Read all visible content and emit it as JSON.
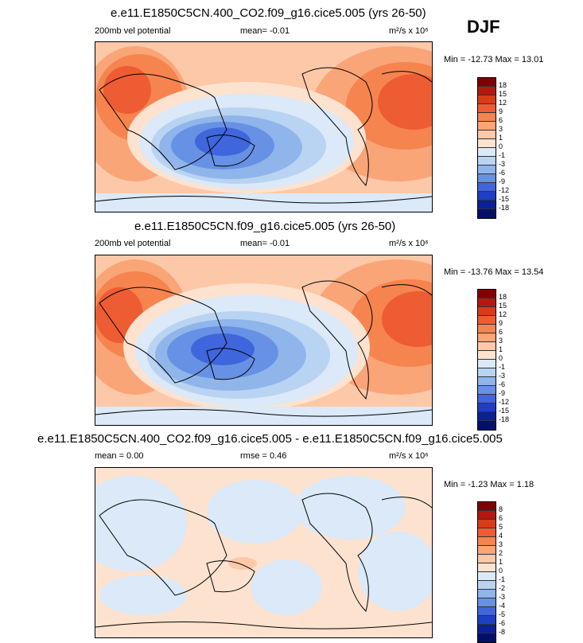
{
  "season": "DJF",
  "panels": [
    {
      "title": "e.e11.E1850C5CN.400_CO2.f09_g16.cice5.005 (yrs 26-50)",
      "left_label": "200mb vel potential",
      "center_label": "mean=  -0.01",
      "units": "m²/s x 10⁶",
      "minmax": "Min = -12.73 Max =  13.01",
      "colorbar_labels": [
        "18",
        "15",
        "12",
        "9",
        "6",
        "3",
        "1",
        "0",
        "-1",
        "-3",
        "-6",
        "-9",
        "-12",
        "-15",
        "-18"
      ]
    },
    {
      "title": "e.e11.E1850C5CN.f09_g16.cice5.005 (yrs 26-50)",
      "left_label": "200mb vel potential",
      "center_label": "mean=  -0.01",
      "units": "m²/s x 10⁶",
      "minmax": "Min = -13.76 Max =  13.54",
      "colorbar_labels": [
        "18",
        "15",
        "12",
        "9",
        "6",
        "3",
        "1",
        "0",
        "-1",
        "-3",
        "-6",
        "-9",
        "-12",
        "-15",
        "-18"
      ]
    },
    {
      "title": "e.e11.E1850C5CN.400_CO2.f09_g16.cice5.005 - e.e11.E1850C5CN.f09_g16.cice5.005",
      "left_label": "mean =   0.00",
      "center_label": "rmse =   0.46",
      "units": "m²/s x 10⁶",
      "minmax": "Min =  -1.23 Max =   1.18",
      "colorbar_labels": [
        "8",
        "6",
        "5",
        "4",
        "3",
        "2",
        "1",
        "0",
        "-1",
        "-2",
        "-3",
        "-4",
        "-5",
        "-6",
        "-8"
      ]
    }
  ],
  "colors": {
    "colorbar": [
      "#7f0000",
      "#b2180e",
      "#d93b17",
      "#ee5c33",
      "#f6844f",
      "#f9a578",
      "#fcc8a8",
      "#fde3cf",
      "#dbe9f8",
      "#b9d3f2",
      "#8fb5eb",
      "#6791e4",
      "#3f66dc",
      "#1d3fc4",
      "#0b2196",
      "#03106b"
    ],
    "land": "#000000"
  },
  "chart_data": [
    {
      "type": "heatmap",
      "title": "e.e11.E1850C5CN.400_CO2.f09_g16.cice5.005 (yrs 26-50)",
      "variable": "200mb vel potential",
      "units": "m²/s x 10⁶",
      "mean": -0.01,
      "min": -12.73,
      "max": 13.01,
      "contour_levels": [
        -18,
        -15,
        -12,
        -9,
        -6,
        -3,
        -1,
        0,
        1,
        3,
        6,
        9,
        12,
        15,
        18
      ],
      "pattern": {
        "negative_center": "western Pacific / Maritime Continent",
        "positive_centers": [
          "Africa / Atlantic",
          "Middle East / Indian Ocean"
        ]
      }
    },
    {
      "type": "heatmap",
      "title": "e.e11.E1850C5CN.f09_g16.cice5.005 (yrs 26-50)",
      "variable": "200mb vel potential",
      "units": "m²/s x 10⁶",
      "mean": -0.01,
      "min": -13.76,
      "max": 13.54,
      "contour_levels": [
        -18,
        -15,
        -12,
        -9,
        -6,
        -3,
        -1,
        0,
        1,
        3,
        6,
        9,
        12,
        15,
        18
      ],
      "pattern": {
        "negative_center": "western Pacific / Maritime Continent",
        "positive_centers": [
          "Africa / Atlantic",
          "Middle East / Indian Ocean"
        ]
      }
    },
    {
      "type": "heatmap",
      "title": "e.e11.E1850C5CN.400_CO2.f09_g16.cice5.005 - e.e11.E1850C5CN.f09_g16.cice5.005",
      "units": "m²/s x 10⁶",
      "mean": 0.0,
      "rmse": 0.46,
      "min": -1.23,
      "max": 1.18,
      "contour_levels": [
        -8,
        -6,
        -5,
        -4,
        -3,
        -2,
        -1,
        0,
        1,
        2,
        3,
        4,
        5,
        6,
        8
      ],
      "pattern": {
        "dominant": "values between -1 and 1"
      }
    }
  ]
}
